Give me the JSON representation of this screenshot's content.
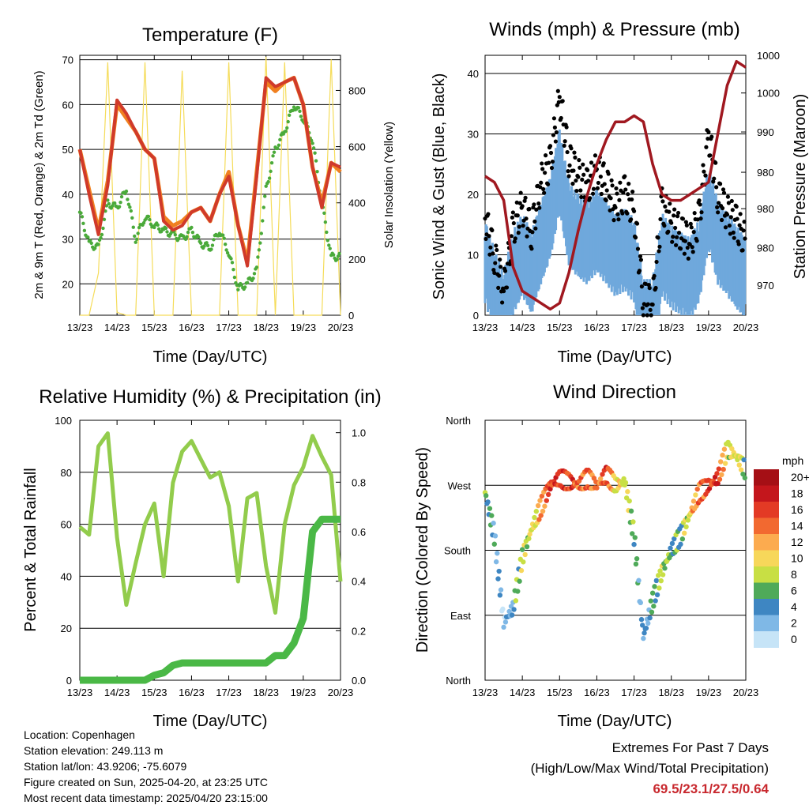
{
  "time_ticks": [
    "13/23",
    "14/23",
    "15/23",
    "16/23",
    "17/23",
    "18/23",
    "19/23",
    "20/23"
  ],
  "chart_data": [
    {
      "type": "line",
      "title": "Temperature (F)",
      "xlabel": "Time (Day/UTC)",
      "ylabel": "2m & 9m T (Red, Orange) & 2m Td (Green)",
      "y2label": "Solar Insolation (Yellow)",
      "ylim": [
        13,
        71
      ],
      "y2lim": [
        0,
        925
      ],
      "yticks": [
        20,
        30,
        40,
        50,
        60,
        70
      ],
      "y2ticks": [
        0,
        200,
        400,
        600,
        800
      ],
      "x": [
        0,
        0.25,
        0.5,
        0.75,
        1,
        1.25,
        1.5,
        1.75,
        2,
        2.25,
        2.5,
        2.75,
        3,
        3.25,
        3.5,
        3.75,
        4,
        4.25,
        4.5,
        4.75,
        5,
        5.25,
        5.5,
        5.75,
        6,
        6.25,
        6.5,
        6.75,
        7
      ],
      "series": [
        {
          "color": "#d03a2a",
          "values": [
            50,
            40,
            31,
            42,
            61,
            58,
            54,
            50,
            48,
            34,
            32,
            33,
            36,
            37,
            34,
            40,
            44,
            33,
            24,
            44,
            66,
            64,
            65,
            66,
            60,
            46,
            37,
            47,
            46
          ]
        },
        {
          "color": "#f08020",
          "values": [
            50,
            41,
            32,
            43,
            60,
            57,
            54,
            50,
            48,
            35,
            33,
            34,
            36,
            37,
            34,
            40,
            45,
            33,
            25,
            45,
            65,
            63,
            65,
            66,
            60,
            46,
            38,
            47,
            45
          ]
        },
        {
          "color": "#4aaa3a",
          "values": [
            36,
            29,
            28,
            38,
            37,
            41,
            30,
            35,
            33,
            32,
            31,
            30,
            32,
            29,
            28,
            32,
            27,
            19,
            20,
            23,
            41,
            50,
            54,
            60,
            57,
            52,
            38,
            26,
            26
          ]
        },
        {
          "color": "#f5dc5a",
          "axis": "y2",
          "values": [
            0,
            0,
            150,
            900,
            10,
            0,
            0,
            900,
            0,
            0,
            0,
            870,
            0,
            0,
            0,
            0,
            900,
            0,
            0,
            0,
            920,
            0,
            900,
            0,
            0,
            0,
            0,
            910,
            0
          ]
        }
      ]
    },
    {
      "type": "scatter",
      "title": "Winds (mph) & Pressure (mb)",
      "xlabel": "Time (Day/UTC)",
      "ylabel": "Sonic Wind & Gust (Blue, Black)",
      "y2label": "Station Pressure (Maroon)",
      "ylim": [
        0,
        43
      ],
      "yticks": [
        0,
        10,
        20,
        30,
        40
      ],
      "y2ticks": [
        "970",
        "980",
        "980",
        "980",
        "990",
        "1000",
        "1000"
      ],
      "x": [
        0,
        0.25,
        0.5,
        0.75,
        1,
        1.25,
        1.5,
        1.75,
        2,
        2.25,
        2.5,
        2.75,
        3,
        3.25,
        3.5,
        3.75,
        4,
        4.25,
        4.5,
        4.75,
        5,
        5.25,
        5.5,
        5.75,
        6,
        6.25,
        6.5,
        6.75,
        7
      ],
      "series": [
        {
          "name": "Gust",
          "color": "#000000",
          "values": [
            16,
            10,
            4,
            14,
            18,
            14,
            22,
            25,
            36,
            26,
            23,
            21,
            24,
            22,
            18,
            20,
            17,
            3,
            2,
            18,
            15,
            14,
            12,
            16,
            30,
            20,
            17,
            15,
            12
          ]
        },
        {
          "name": "Wind",
          "color": "#6fa8dc",
          "values": [
            11,
            6,
            2,
            9,
            12,
            9,
            14,
            18,
            26,
            17,
            15,
            14,
            16,
            14,
            12,
            13,
            11,
            1,
            1,
            12,
            10,
            9,
            8,
            11,
            20,
            14,
            12,
            10,
            8
          ]
        },
        {
          "name": "Pressure",
          "color": "#a01820",
          "axis": "y2",
          "values": [
            23,
            22,
            19,
            8,
            4,
            3,
            2,
            1,
            2,
            7,
            14,
            20,
            25,
            29,
            32,
            32,
            33,
            32,
            25,
            20,
            19,
            19,
            20,
            21,
            22,
            30,
            38,
            42,
            41
          ]
        }
      ]
    },
    {
      "type": "line",
      "title": "Relative Humidity (%) & Precipitation (in)",
      "xlabel": "Time (Day/UTC)",
      "ylabel": "Percent & Total Rainfall",
      "ylim": [
        0,
        100
      ],
      "y2lim": [
        0,
        1.05
      ],
      "yticks": [
        0,
        20,
        40,
        60,
        80,
        100
      ],
      "y2ticks": [
        "0.0",
        "0.2",
        "0.4",
        "0.6",
        "0.8",
        "1.0"
      ],
      "x": [
        0,
        0.25,
        0.5,
        0.75,
        1,
        1.25,
        1.5,
        1.75,
        2,
        2.25,
        2.5,
        2.75,
        3,
        3.25,
        3.5,
        3.75,
        4,
        4.25,
        4.5,
        4.75,
        5,
        5.25,
        5.5,
        5.75,
        6,
        6.25,
        6.5,
        6.75,
        7
      ],
      "series": [
        {
          "name": "RH",
          "color": "#92cc4c",
          "values": [
            59,
            56,
            90,
            95,
            55,
            29,
            45,
            60,
            68,
            40,
            76,
            88,
            92,
            85,
            78,
            80,
            67,
            38,
            70,
            72,
            44,
            26,
            60,
            75,
            82,
            94,
            86,
            79,
            38
          ]
        },
        {
          "name": "Precipitation",
          "color": "#4ab846",
          "axis": "y2",
          "values": [
            0,
            0,
            0,
            0,
            0,
            0,
            0,
            0,
            0.02,
            0.03,
            0.06,
            0.07,
            0.07,
            0.07,
            0.07,
            0.07,
            0.07,
            0.07,
            0.07,
            0.07,
            0.07,
            0.1,
            0.1,
            0.15,
            0.25,
            0.6,
            0.65,
            0.65,
            0.65
          ]
        }
      ]
    },
    {
      "type": "scatter",
      "title": "Wind Direction",
      "xlabel": "Time (Day/UTC)",
      "ylabel": "Direction (Colored By Speed)",
      "yticks": [
        "North",
        "East",
        "South",
        "West",
        "North"
      ],
      "ylim": [
        0,
        360
      ],
      "x": [
        0,
        0.25,
        0.5,
        0.75,
        1,
        1.25,
        1.5,
        1.75,
        2,
        2.25,
        2.5,
        2.75,
        3,
        3.25,
        3.5,
        3.75,
        4,
        4.25,
        4.5,
        4.75,
        5,
        5.25,
        5.5,
        5.75,
        6,
        6.25,
        6.5,
        6.75,
        7
      ],
      "direction": [
        260,
        200,
        80,
        100,
        170,
        210,
        240,
        270,
        280,
        275,
        270,
        280,
        270,
        285,
        270,
        275,
        200,
        60,
        110,
        150,
        180,
        200,
        230,
        260,
        270,
        280,
        320,
        310,
        290
      ],
      "speed": [
        6,
        4,
        2,
        4,
        8,
        8,
        12,
        16,
        17,
        16,
        14,
        14,
        12,
        16,
        10,
        10,
        6,
        2,
        4,
        8,
        6,
        6,
        10,
        14,
        15,
        16,
        8,
        10,
        6
      ],
      "legend_title": "mph",
      "legend": [
        {
          "label": "20+",
          "color": "#a50f15"
        },
        {
          "label": "18",
          "color": "#c4161c"
        },
        {
          "label": "16",
          "color": "#e33a25"
        },
        {
          "label": "14",
          "color": "#f26930"
        },
        {
          "label": "12",
          "color": "#fcab4f"
        },
        {
          "label": "10",
          "color": "#f7d75a"
        },
        {
          "label": "8",
          "color": "#c8df44"
        },
        {
          "label": "6",
          "color": "#4faa59"
        },
        {
          "label": "4",
          "color": "#3e86c2"
        },
        {
          "label": "2",
          "color": "#7fb8e6"
        },
        {
          "label": "0",
          "color": "#c6e4f7"
        }
      ]
    }
  ],
  "footer": {
    "location": "Location: Copenhagen",
    "elevation": "Station elevation: 249.113 m",
    "latlon": "Station lat/lon: 43.9206; -75.6079",
    "created": "Figure created on Sun, 2025-04-20, at 23:25 UTC",
    "recent": "Most recent data timestamp: 2025/04/20 23:15:00"
  },
  "extremes": {
    "line1": "Extremes For Past 7 Days",
    "line2": "(High/Low/Max Wind/Total Precipitation)",
    "values": "69.5/23.1/27.5/0.64",
    "value_color": "#c8282e"
  }
}
